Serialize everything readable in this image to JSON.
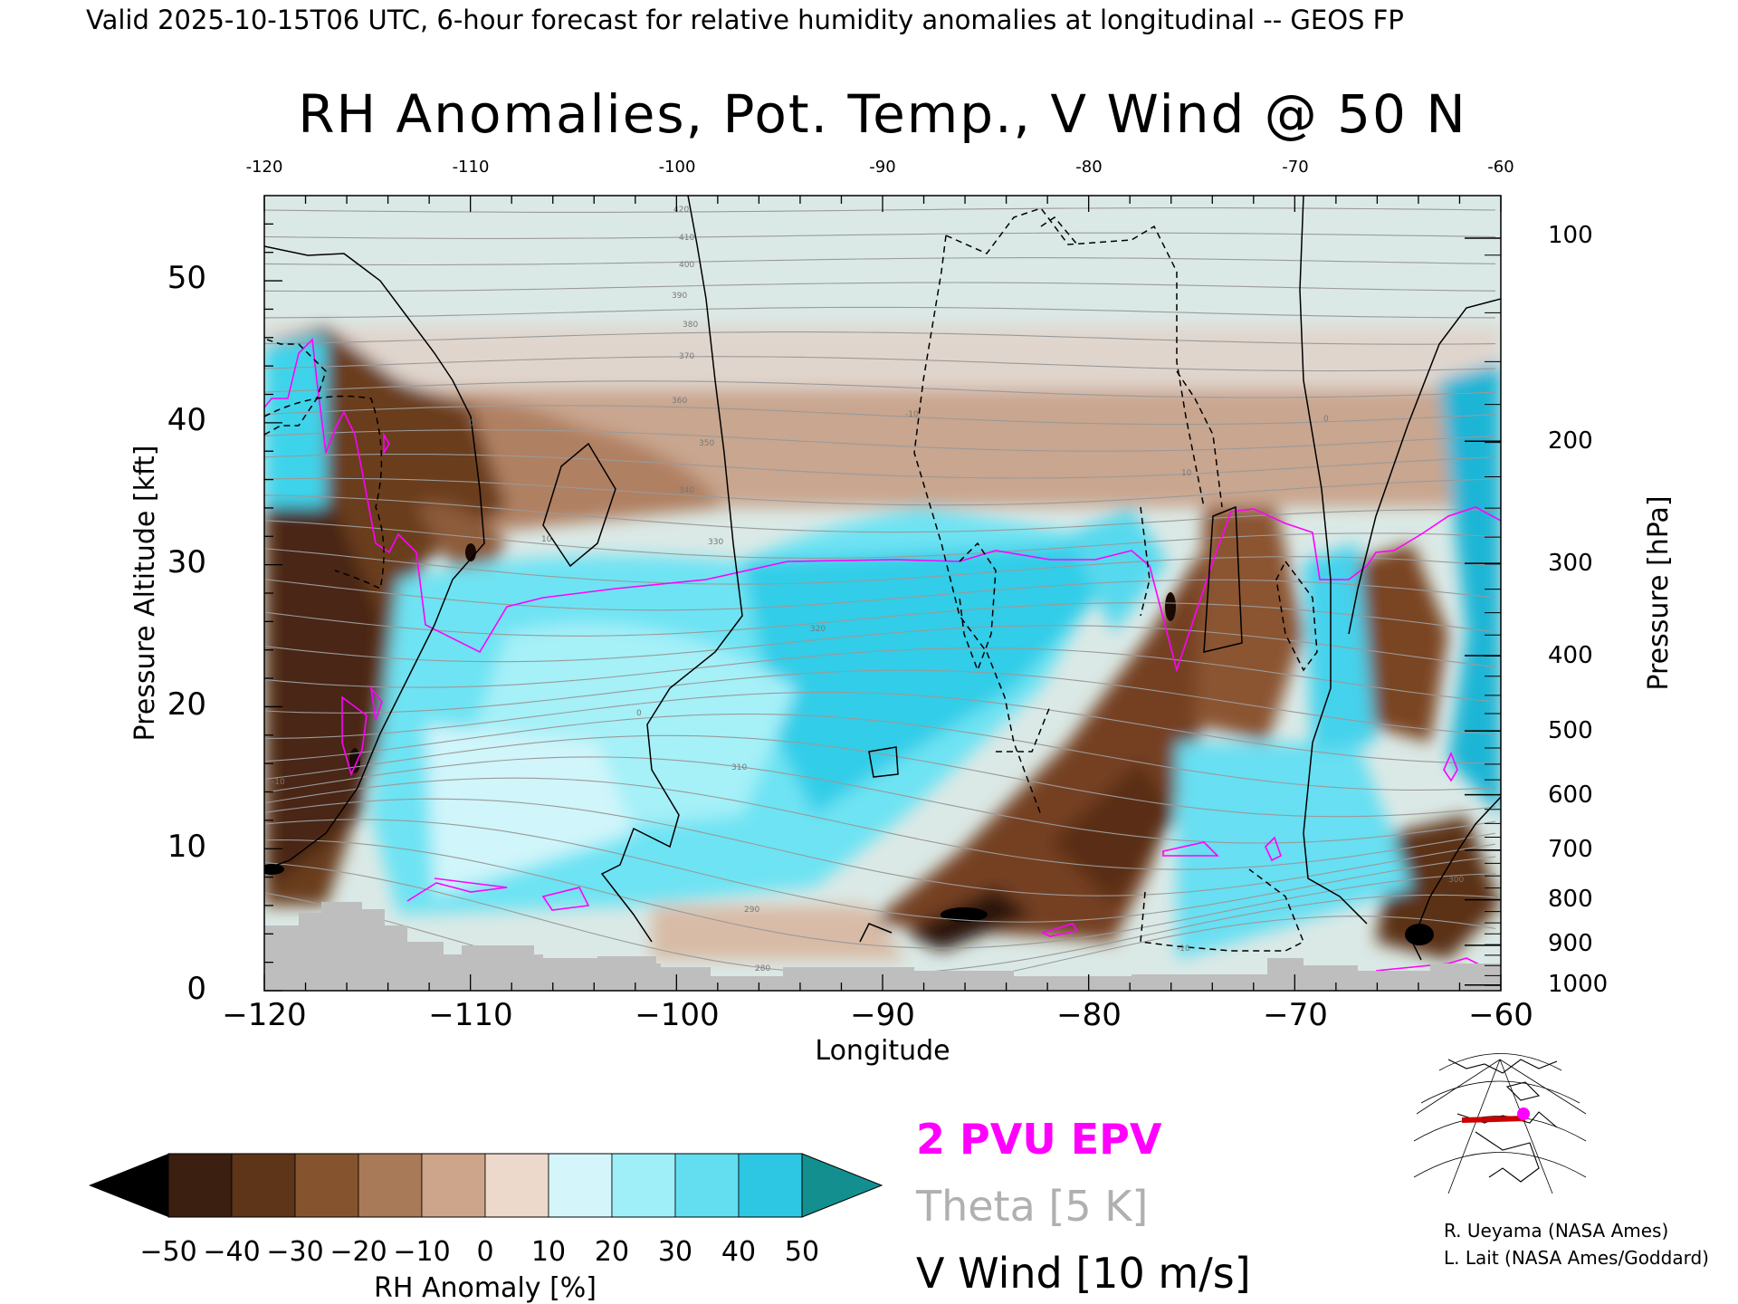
{
  "header": "Valid 2025-10-15T06 UTC, 6-hour forecast for relative humidity anomalies at longitudinal -- GEOS FP",
  "chart_data": {
    "type": "heatmap",
    "title": "RH Anomalies, Pot. Temp., V Wind @ 50 N",
    "xlabel": "Longitude",
    "ylabel": "Pressure Altitude [kft]",
    "ylabel_right": "Pressure [hPa]",
    "xlim": [
      -120,
      -60
    ],
    "ylim": [
      0,
      56
    ],
    "x_ticks": [
      "−120",
      "−110",
      "−100",
      "−90",
      "−80",
      "−70",
      "−60"
    ],
    "x_top_ticks": [
      "-120",
      "-110",
      "-100",
      "-90",
      "-80",
      "-70",
      "-60"
    ],
    "y_ticks": [
      "0",
      "10",
      "20",
      "30",
      "40",
      "50"
    ],
    "pressure_ticks": [
      {
        "label": "100",
        "kft": 53.0
      },
      {
        "label": "200",
        "kft": 38.7
      },
      {
        "label": "300",
        "kft": 30.1
      },
      {
        "label": "400",
        "kft": 23.6
      },
      {
        "label": "500",
        "kft": 18.3
      },
      {
        "label": "600",
        "kft": 13.8
      },
      {
        "label": "700",
        "kft": 9.9
      },
      {
        "label": "800",
        "kft": 6.4
      },
      {
        "label": "900",
        "kft": 3.2
      },
      {
        "label": "1000",
        "kft": 0.4
      }
    ],
    "colorbar": {
      "label": "RH Anomaly [%]",
      "ticks": [
        "−50",
        "−40",
        "−30",
        "−20",
        "−10",
        "0",
        "10",
        "20",
        "30",
        "40",
        "50"
      ],
      "colors": [
        "#3b1f10",
        "#5e3519",
        "#85542f",
        "#a97a58",
        "#cda58a",
        "#ecd9cc",
        "#d4f6fb",
        "#9feff8",
        "#63def1",
        "#2ec7e3",
        "#08a8c8"
      ],
      "min_color": "#000000",
      "max_color": "#138f8f"
    },
    "theta_labels": [
      "420",
      "410",
      "400",
      "390",
      "380",
      "370",
      "360",
      "350",
      "340",
      "330",
      "320",
      "310",
      "300",
      "290",
      "280"
    ],
    "wind_labels": [
      "0",
      "10",
      "-10"
    ],
    "overlay_legend": [
      {
        "text": "2 PVU EPV",
        "color": "#ff00ff"
      },
      {
        "text": "Theta [5 K]",
        "color": "#b0b0b0"
      },
      {
        "text": "V Wind [10 m/s]",
        "color": "#000000"
      }
    ]
  },
  "credits": [
    "R. Ueyama (NASA Ames)",
    "L. Lait (NASA Ames/Goddard)"
  ]
}
